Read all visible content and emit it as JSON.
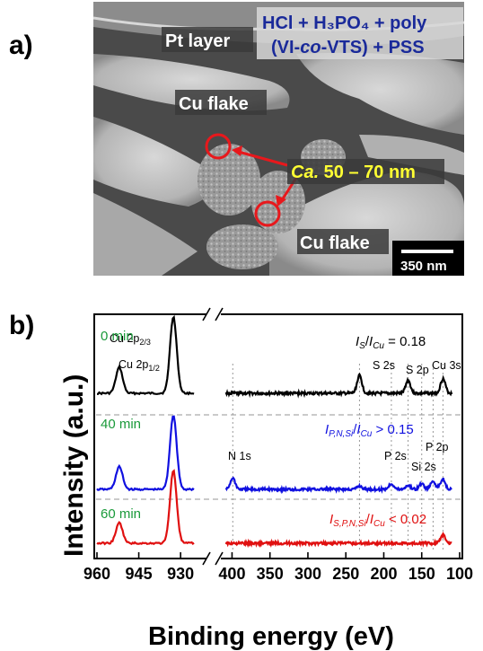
{
  "panel_a": {
    "label": "a)",
    "title_line1": "HCl + H₃PO₄ + poly",
    "title_line2_pre": "(VI-",
    "title_line2_italic": "co",
    "title_line2_post": "-VTS) + PSS",
    "pt_layer": "Pt layer",
    "cu_flake_top": "Cu flake",
    "cu_flake_bottom": "Cu flake",
    "ca_italic": "Ca.",
    "ca_range": " 50 – 70 nm",
    "scalebar_text": "350 nm",
    "annotation_color": "#e8181c",
    "highlight_color": "#ffff33"
  },
  "panel_b": {
    "label": "b)",
    "ratio_0min": "= 0.18",
    "ratio_40min": "> 0.15",
    "ratio_60min": "< 0.02"
  },
  "chart_data": {
    "type": "line",
    "xlabel": "Binding energy (eV)",
    "ylabel": "Intensity (a.u.)",
    "x_axis_break": [
      925,
      410
    ],
    "x_ticks": [
      "960",
      "945",
      "930",
      "400",
      "350",
      "300",
      "250",
      "200",
      "150",
      "100"
    ],
    "series": [
      {
        "name": "0 min",
        "color": "#000000",
        "offset": 2.0,
        "peaks": [
          {
            "x": 952,
            "h": 0.32
          },
          {
            "x": 932.6,
            "h": 0.95
          },
          {
            "x": 232,
            "h": 0.22
          },
          {
            "x": 168,
            "h": 0.16
          },
          {
            "x": 122,
            "h": 0.18
          }
        ],
        "ratio_text": "= 0.18",
        "ratio_sub": "S",
        "ratio_color": "#000000",
        "label_color": "#1a9a3a"
      },
      {
        "name": "40 min",
        "color": "#1010e0",
        "offset": 1.0,
        "peaks": [
          {
            "x": 952,
            "h": 0.28
          },
          {
            "x": 932.6,
            "h": 0.92
          },
          {
            "x": 399,
            "h": 0.14
          },
          {
            "x": 232,
            "h": 0.04
          },
          {
            "x": 190,
            "h": 0.07
          },
          {
            "x": 168,
            "h": 0.05
          },
          {
            "x": 150,
            "h": 0.07
          },
          {
            "x": 135,
            "h": 0.1
          },
          {
            "x": 122,
            "h": 0.13
          }
        ],
        "ratio_text": "> 0.15",
        "ratio_sub": "P,N,Si",
        "ratio_color": "#1010e0",
        "label_color": "#1a9a3a"
      },
      {
        "name": "60 min",
        "color": "#e01010",
        "offset": 0.0,
        "peaks": [
          {
            "x": 952,
            "h": 0.25
          },
          {
            "x": 932.6,
            "h": 0.9
          },
          {
            "x": 122,
            "h": 0.1
          }
        ],
        "ratio_text": "< 0.02",
        "ratio_sub": "S,P,N,Si",
        "ratio_color": "#e01010",
        "label_color": "#1a9a3a"
      }
    ],
    "peak_labels": [
      {
        "main": "Cu 2p",
        "sub": "1/2",
        "x": 952
      },
      {
        "main": "Cu 2p",
        "sub": "2/3",
        "x": 932.6
      },
      {
        "main": "S 2s",
        "sub": "",
        "x": 232
      },
      {
        "main": "S 2p",
        "sub": "",
        "x": 168
      },
      {
        "main": "Cu 3s",
        "sub": "",
        "x": 122
      },
      {
        "main": "N 1s",
        "sub": "",
        "x": 399
      },
      {
        "main": "P 2s",
        "sub": "",
        "x": 190
      },
      {
        "main": "Si 2s",
        "sub": "",
        "x": 150
      },
      {
        "main": "P 2p",
        "sub": "",
        "x": 135
      }
    ],
    "reference_lines_x": [
      399,
      232,
      190,
      168,
      150,
      135,
      122
    ]
  }
}
